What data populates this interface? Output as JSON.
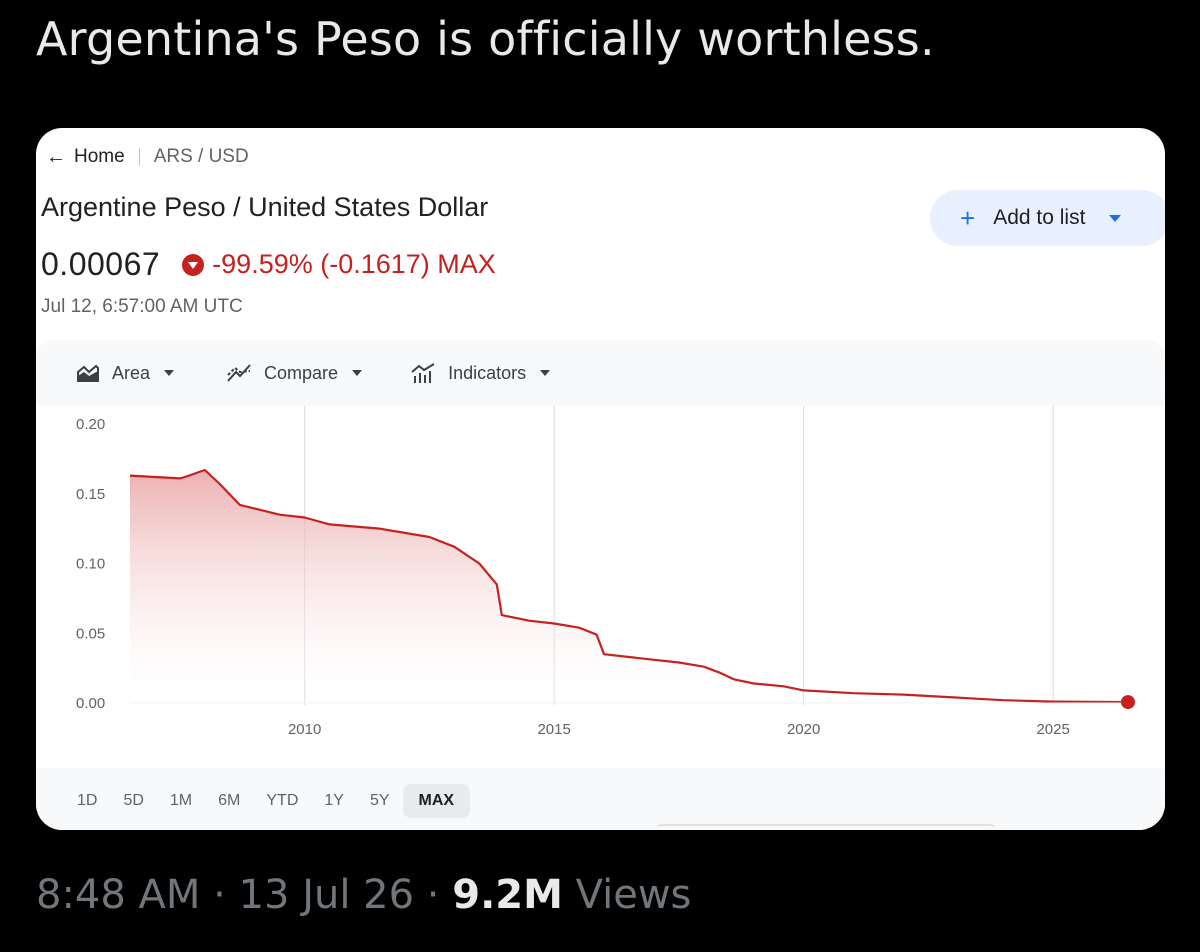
{
  "tweet": {
    "text": "Argentina's Peso is officially worthless.",
    "time": "8:48 AM",
    "dot": "·",
    "date": "13 Jul 26",
    "views_count": "9.2M",
    "views_label": "Views"
  },
  "finance": {
    "breadcrumb_home": "Home",
    "breadcrumb_pair": "ARS / USD",
    "asset_name": "Argentine Peso / United States Dollar",
    "price": "0.00067",
    "change": "-99.59% (-0.1617) MAX",
    "timestamp": "Jul 12, 6:57:00 AM UTC",
    "add_to_list": "Add to list",
    "toolbar": {
      "area": "Area",
      "compare": "Compare",
      "indicators": "Indicators"
    },
    "ranges": [
      "1D",
      "5D",
      "1M",
      "6M",
      "YTD",
      "1Y",
      "5Y",
      "MAX"
    ],
    "active_range": "MAX",
    "colors": {
      "negative": "#c5221f",
      "accent": "#1a73e8",
      "line": "#c5221f"
    },
    "icons": {
      "back": "arrow-left-icon",
      "down": "down-arrow-circle-icon",
      "add": "plus-icon",
      "area": "area-chart-icon",
      "compare": "compare-icon",
      "indicators": "indicators-icon"
    }
  },
  "chart_data": {
    "type": "area",
    "x": [
      2006.5,
      2007.5,
      2007.6,
      2008.0,
      2008.3,
      2008.7,
      2009.5,
      2010.0,
      2010.5,
      2011.5,
      2012.5,
      2013.0,
      2013.5,
      2013.85,
      2013.95,
      2014.5,
      2015.0,
      2015.5,
      2015.85,
      2016.0,
      2016.5,
      2017.0,
      2017.5,
      2018.0,
      2018.3,
      2018.6,
      2019.0,
      2019.6,
      2020.0,
      2021.0,
      2022.0,
      2023.0,
      2023.5,
      2024.0,
      2025.0,
      2026.5
    ],
    "y": [
      0.163,
      0.161,
      0.162,
      0.167,
      0.157,
      0.142,
      0.135,
      0.133,
      0.128,
      0.125,
      0.119,
      0.112,
      0.1,
      0.085,
      0.063,
      0.059,
      0.057,
      0.054,
      0.049,
      0.035,
      0.033,
      0.031,
      0.029,
      0.026,
      0.022,
      0.017,
      0.014,
      0.012,
      0.009,
      0.007,
      0.006,
      0.004,
      0.003,
      0.002,
      0.001,
      0.00067
    ],
    "xticks": [
      "2010",
      "2015",
      "2020",
      "2025"
    ],
    "xtick_values": [
      2010,
      2015,
      2020,
      2025
    ],
    "yticks": [
      "0.00",
      "0.05",
      "0.10",
      "0.15",
      "0.20"
    ],
    "ytick_values": [
      0,
      0.05,
      0.1,
      0.15,
      0.2
    ],
    "xlim": [
      2006.5,
      2026.5
    ],
    "ylim": [
      0,
      0.2
    ],
    "grid": "vertical",
    "last_point_marker": true
  }
}
